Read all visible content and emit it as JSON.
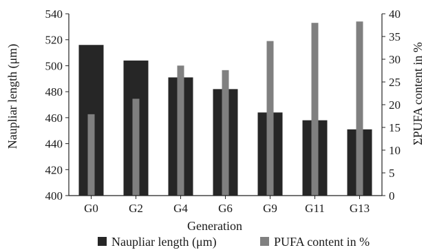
{
  "chart_data": {
    "type": "bar",
    "categories": [
      "G0",
      "G2",
      "G4",
      "G6",
      "G9",
      "G11",
      "G13"
    ],
    "xlabel": "Generation",
    "ylabel": "Naupliar length (μm)",
    "y2label": "ΣPUFA content in %",
    "ylim": [
      400,
      540
    ],
    "y2lim": [
      0,
      40
    ],
    "yticks": [
      400,
      420,
      440,
      460,
      480,
      500,
      520,
      540
    ],
    "y2ticks": [
      0,
      5,
      10,
      15,
      20,
      25,
      30,
      35,
      40
    ],
    "grid": false,
    "legend_position": "bottom",
    "series": [
      {
        "name": "Naupliar length (μm)",
        "axis": "left",
        "color": "#262626",
        "values": [
          516,
          504,
          491,
          482,
          464,
          458,
          451
        ]
      },
      {
        "name": "PUFA content in %",
        "axis": "right",
        "color": "#808080",
        "values": [
          17.9,
          21.3,
          28.6,
          27.6,
          34.0,
          38.0,
          38.3
        ]
      }
    ]
  }
}
